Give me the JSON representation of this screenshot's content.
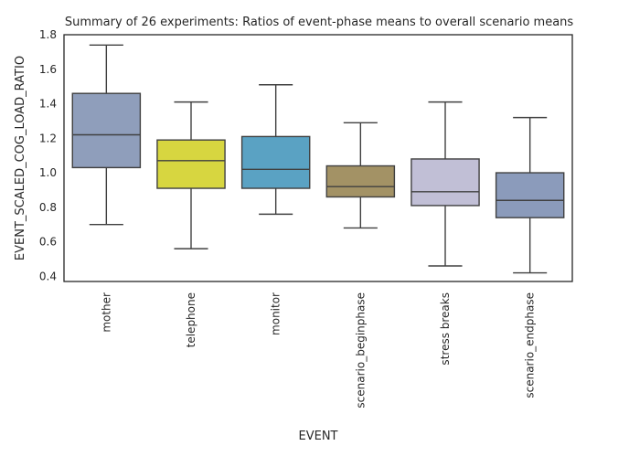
{
  "chart_data": {
    "type": "box",
    "title": "Summary of 26 experiments: Ratios of event-phase means to overall scenario means",
    "xlabel": "EVENT",
    "ylabel": "EVENT_SCALED_COG_LOAD_RATIO",
    "ylim": [
      0.37,
      1.8
    ],
    "yticks": [
      "0.4",
      "0.6",
      "0.8",
      "1.0",
      "1.2",
      "1.4",
      "1.6",
      "1.8"
    ],
    "grid": false,
    "categories": [
      "mother",
      "telephone",
      "monitor",
      "scenario_beginphase",
      "stress breaks",
      "scenario_endphase"
    ],
    "series": [
      {
        "category": "mother",
        "color": "#8f9ebb",
        "whisker_low": 0.7,
        "q1": 1.03,
        "median": 1.22,
        "q3": 1.46,
        "whisker_high": 1.74
      },
      {
        "category": "telephone",
        "color": "#d7d640",
        "whisker_low": 0.56,
        "q1": 0.91,
        "median": 1.07,
        "q3": 1.19,
        "whisker_high": 1.41
      },
      {
        "category": "monitor",
        "color": "#5aa2c3",
        "whisker_low": 0.76,
        "q1": 0.91,
        "median": 1.02,
        "q3": 1.21,
        "whisker_high": 1.51
      },
      {
        "category": "scenario_beginphase",
        "color": "#a39265",
        "whisker_low": 0.68,
        "q1": 0.86,
        "median": 0.92,
        "q3": 1.04,
        "whisker_high": 1.29
      },
      {
        "category": "stress breaks",
        "color": "#c1bfd6",
        "whisker_low": 0.46,
        "q1": 0.81,
        "median": 0.89,
        "q3": 1.08,
        "whisker_high": 1.41
      },
      {
        "category": "scenario_endphase",
        "color": "#8b9bbb",
        "whisker_low": 0.42,
        "q1": 0.74,
        "median": 0.84,
        "q3": 1.0,
        "whisker_high": 1.32
      }
    ]
  }
}
